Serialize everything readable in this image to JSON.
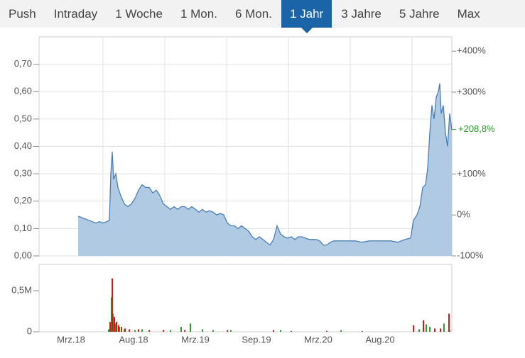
{
  "tabs": {
    "items": [
      "Push",
      "Intraday",
      "1 Woche",
      "1 Mon.",
      "6 Mon.",
      "1 Jahr",
      "3 Jahre",
      "5 Jahre",
      "Max"
    ],
    "active": 5
  },
  "chart_data": [
    {
      "type": "area",
      "color": "#4a7fb5",
      "fill": "#a9c4e0",
      "x": [
        55,
        60,
        65,
        70,
        75,
        80,
        85,
        90,
        95,
        99,
        101,
        103,
        105,
        108,
        111,
        115,
        120,
        125,
        130,
        135,
        140,
        145,
        150,
        155,
        160,
        165,
        170,
        175,
        180,
        185,
        190,
        195,
        200,
        205,
        210,
        215,
        220,
        225,
        230,
        235,
        240,
        245,
        250,
        255,
        260,
        265,
        270,
        275,
        280,
        285,
        290,
        295,
        300,
        305,
        310,
        315,
        320,
        325,
        330,
        335,
        340,
        345,
        350,
        355,
        360,
        365,
        370,
        375,
        380,
        385,
        390,
        395,
        400,
        405,
        410,
        415,
        425,
        435,
        445,
        455,
        465,
        475,
        485,
        495,
        505,
        515,
        523,
        527,
        532,
        536,
        540,
        544,
        547,
        550,
        553,
        556,
        559,
        562,
        564,
        566,
        569,
        572,
        575,
        578,
        581
      ],
      "values": [
        0.145,
        0.14,
        0.135,
        0.13,
        0.125,
        0.12,
        0.125,
        0.12,
        0.125,
        0.13,
        0.3,
        0.38,
        0.28,
        0.3,
        0.25,
        0.22,
        0.19,
        0.18,
        0.19,
        0.21,
        0.24,
        0.26,
        0.25,
        0.25,
        0.23,
        0.24,
        0.22,
        0.19,
        0.18,
        0.17,
        0.18,
        0.17,
        0.18,
        0.18,
        0.17,
        0.18,
        0.17,
        0.16,
        0.17,
        0.16,
        0.165,
        0.16,
        0.15,
        0.155,
        0.15,
        0.12,
        0.11,
        0.11,
        0.1,
        0.11,
        0.1,
        0.09,
        0.07,
        0.06,
        0.07,
        0.06,
        0.05,
        0.04,
        0.06,
        0.11,
        0.08,
        0.07,
        0.065,
        0.07,
        0.06,
        0.07,
        0.07,
        0.065,
        0.06,
        0.06,
        0.06,
        0.055,
        0.04,
        0.04,
        0.05,
        0.055,
        0.055,
        0.055,
        0.055,
        0.05,
        0.055,
        0.055,
        0.055,
        0.055,
        0.05,
        0.06,
        0.065,
        0.13,
        0.15,
        0.18,
        0.25,
        0.26,
        0.32,
        0.45,
        0.55,
        0.5,
        0.58,
        0.6,
        0.63,
        0.52,
        0.55,
        0.45,
        0.4,
        0.52,
        0.46
      ],
      "xlim": [
        0,
        581
      ],
      "xgrid": [
        90,
        177,
        264,
        351,
        438,
        525
      ],
      "ylim": [
        0,
        0.8
      ],
      "yticks": [
        {
          "value": 0,
          "label": "0,00"
        },
        {
          "value": 0.1,
          "label": "0,10"
        },
        {
          "value": 0.2,
          "label": "0,20"
        },
        {
          "value": 0.3,
          "label": "0,30"
        },
        {
          "value": 0.4,
          "label": "0,40"
        },
        {
          "value": 0.5,
          "label": "0,50"
        },
        {
          "value": 0.6,
          "label": "0,60"
        },
        {
          "value": 0.7,
          "label": "0,70"
        }
      ],
      "y2lim": [
        -100,
        435
      ],
      "y2ticks": [
        {
          "value": -100,
          "label": "-100%"
        },
        {
          "value": 0,
          "label": "0%"
        },
        {
          "value": 100,
          "label": "+100%"
        },
        {
          "value": 300,
          "label": "+300%"
        },
        {
          "value": 400,
          "label": "+400%"
        }
      ],
      "grid": true,
      "annotation": {
        "value": 208.8,
        "label": "+208,8%",
        "color": "#2a9a2a"
      }
    },
    {
      "type": "bar",
      "series": [
        {
          "color": "#2e9a2e",
          "x": [
            98,
            102,
            104,
            107,
            113,
            120,
            135,
            145,
            185,
            200,
            213,
            230,
            245,
            270,
            340,
            425,
            455,
            535,
            545,
            550,
            570,
            578
          ],
          "values": [
            30000,
            420000,
            220000,
            100000,
            60000,
            30000,
            20000,
            30000,
            20000,
            60000,
            100000,
            30000,
            20000,
            20000,
            20000,
            20000,
            10000,
            30000,
            90000,
            60000,
            100000,
            20000
          ]
        },
        {
          "color": "#d01c1c",
          "x": [
            100,
            103,
            106,
            109,
            112,
            116,
            121,
            127,
            140,
            155,
            175,
            205,
            265,
            330,
            355,
            405,
            527,
            541,
            557,
            565,
            577
          ],
          "values": [
            120000,
            650000,
            180000,
            120000,
            80000,
            60000,
            40000,
            30000,
            30000,
            20000,
            20000,
            20000,
            20000,
            20000,
            10000,
            10000,
            80000,
            140000,
            40000,
            40000,
            220000
          ]
        }
      ],
      "xlim": [
        0,
        581
      ],
      "xticks": [
        {
          "value": 45,
          "label": "Mrz.18"
        },
        {
          "value": 133,
          "label": "Aug.18"
        },
        {
          "value": 220,
          "label": "Mrz.19"
        },
        {
          "value": 306,
          "label": "Sep.19"
        },
        {
          "value": 393,
          "label": "Mrz.20"
        },
        {
          "value": 480,
          "label": "Aug.20"
        }
      ],
      "ylim": [
        0,
        820000
      ],
      "yticks": [
        0,
        {
          "value": 500000,
          "label": "0,5M"
        }
      ]
    }
  ]
}
